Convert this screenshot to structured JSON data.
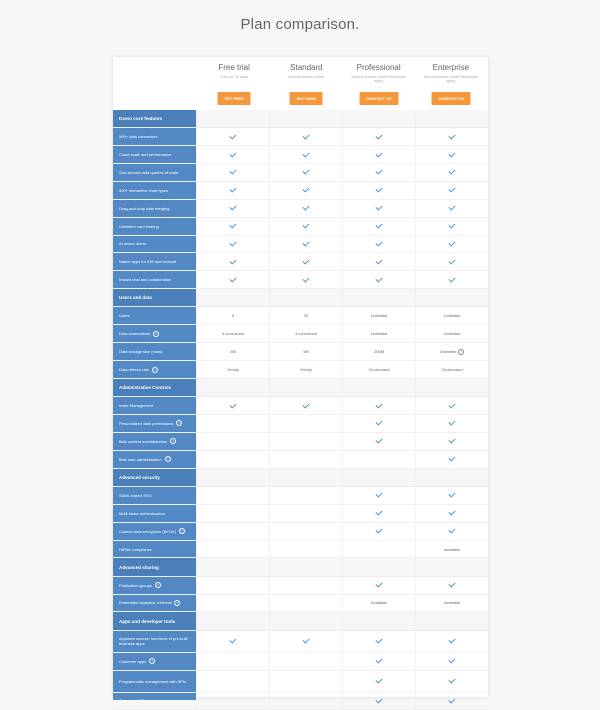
{
  "page": {
    "title": "Plan comparison."
  },
  "plans": [
    {
      "name": "Free trial",
      "sub": "Free for 30 days",
      "cta": "TRY FREE"
    },
    {
      "name": "Standard",
      "sub": "Annual license model",
      "cta": "BUY NOW"
    },
    {
      "name": "Professional",
      "sub": "Annual license model Minimums apply",
      "cta": "CONTACT US"
    },
    {
      "name": "Enterprise",
      "sub": "Annual license model Minimums apply",
      "cta": "CONTACT US"
    }
  ],
  "rows": [
    {
      "type": "section",
      "label": "Domo core features"
    },
    {
      "type": "row",
      "label": "500+ data connectors",
      "cells": [
        "check",
        "check",
        "check",
        "check"
      ]
    },
    {
      "type": "row",
      "label": "Cloud scale and performance",
      "cells": [
        "check",
        "check",
        "check",
        "check"
      ]
    },
    {
      "type": "row",
      "label": "Sub-second data queries at scale",
      "cells": [
        "check",
        "check",
        "check",
        "check"
      ]
    },
    {
      "type": "row",
      "label": "300+ interactive chart types",
      "cells": [
        "check",
        "check",
        "check",
        "check"
      ]
    },
    {
      "type": "row",
      "label": "Drag-and-drop data merging",
      "cells": [
        "check",
        "check",
        "check",
        "check"
      ]
    },
    {
      "type": "row",
      "label": "Unlimited card sharing",
      "cells": [
        "check",
        "check",
        "check",
        "check"
      ]
    },
    {
      "type": "row",
      "label": "AI-driven alerts",
      "cells": [
        "check",
        "check",
        "check",
        "check"
      ]
    },
    {
      "type": "row",
      "label": "Native apps for iOS and Android",
      "cells": [
        "check",
        "check",
        "check",
        "check"
      ]
    },
    {
      "type": "row",
      "label": "Instant chat and collaboration",
      "cells": [
        "check",
        "check",
        "check",
        "check"
      ]
    },
    {
      "type": "section",
      "label": "Users and data"
    },
    {
      "type": "row",
      "label": "Users",
      "cells": [
        "5",
        "25",
        "Unlimited",
        "Unlimited"
      ]
    },
    {
      "type": "row",
      "label": "Data connections",
      "help": true,
      "cells": [
        "4 concurrent",
        "4 concurrent",
        "Unlimited",
        "Unlimited"
      ]
    },
    {
      "type": "row",
      "label": "Data storage size (rows)",
      "cells": [
        "5M",
        "5M",
        "250M",
        "Unlimited"
      ],
      "helpCell": 3
    },
    {
      "type": "row",
      "label": "Data refresh rate",
      "help": true,
      "cells": [
        "Hourly",
        "Hourly",
        "On-demand",
        "On-demand"
      ]
    },
    {
      "type": "section",
      "label": "Administrative Controls"
    },
    {
      "type": "row",
      "label": "Invite Management",
      "cells": [
        "check",
        "check",
        "check",
        "check"
      ]
    },
    {
      "type": "row",
      "label": "Personalized data permissions",
      "help": true,
      "cells": [
        "",
        "",
        "check",
        "check"
      ]
    },
    {
      "type": "row",
      "label": "Bulk content administration",
      "help": true,
      "cells": [
        "",
        "",
        "check",
        "check"
      ]
    },
    {
      "type": "row",
      "label": "Bulk user administration",
      "help": true,
      "cells": [
        "",
        "",
        "",
        "check"
      ]
    },
    {
      "type": "section",
      "label": "Advanced security"
    },
    {
      "type": "row",
      "label": "SAML-based SSO",
      "cells": [
        "",
        "",
        "check",
        "check"
      ]
    },
    {
      "type": "row",
      "label": "Multi-factor authentication",
      "cells": [
        "",
        "",
        "check",
        "check"
      ]
    },
    {
      "type": "row",
      "label": "Custom data encryption (BYOK)",
      "help": true,
      "cells": [
        "",
        "",
        "check",
        "check"
      ]
    },
    {
      "type": "row",
      "label": "HIPAA compliance",
      "cells": [
        "",
        "",
        "",
        "Available"
      ]
    },
    {
      "type": "section",
      "label": "Advanced sharing"
    },
    {
      "type": "row",
      "label": "Publication groups",
      "help": true,
      "cells": [
        "",
        "",
        "check",
        "check"
      ]
    },
    {
      "type": "row",
      "label": "Embedded analytics, external",
      "help": true,
      "cells": [
        "",
        "",
        "Available",
        "Available"
      ]
    },
    {
      "type": "section",
      "label": "Apps and developer tools"
    },
    {
      "type": "row",
      "label": "Appstore access: hundreds of pre-built business apps",
      "cells": [
        "check",
        "check",
        "check",
        "check"
      ],
      "tall": true
    },
    {
      "type": "row",
      "label": "Customer apps",
      "help": true,
      "cells": [
        "",
        "",
        "check",
        "check"
      ]
    },
    {
      "type": "row",
      "label": "Programmatic management with APIs",
      "cells": [
        "",
        "",
        "check",
        "check"
      ],
      "tall": true
    },
    {
      "type": "row",
      "label": "Connector IDE",
      "cells": [
        "",
        "",
        "check",
        "check"
      ]
    }
  ]
}
